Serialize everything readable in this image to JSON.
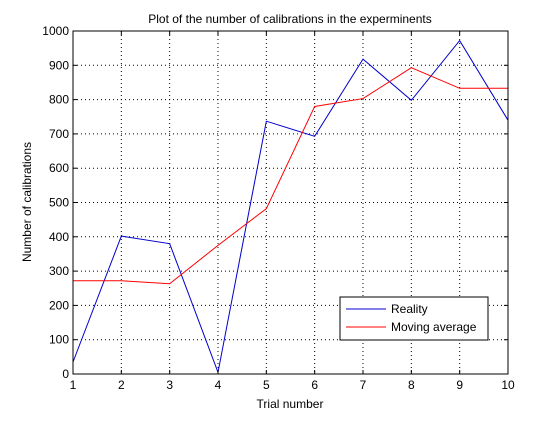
{
  "chart_data": {
    "type": "line",
    "title": "Plot of the number of calibrations in the experminents",
    "xlabel": "Trial number",
    "ylabel": "Number of calibrations",
    "xlim": [
      1,
      10
    ],
    "ylim": [
      0,
      1000
    ],
    "x_ticks": [
      1,
      2,
      3,
      4,
      5,
      6,
      7,
      8,
      9,
      10
    ],
    "y_ticks": [
      0,
      100,
      200,
      300,
      400,
      500,
      600,
      700,
      800,
      900,
      1000
    ],
    "grid": true,
    "legend_position": "bottom-right",
    "x": [
      1,
      2,
      3,
      4,
      5,
      6,
      7,
      8,
      9,
      10
    ],
    "series": [
      {
        "name": "Reality",
        "color": "#0000cc",
        "values": [
          35,
          402,
          380,
          5,
          737,
          693,
          918,
          798,
          972,
          740
        ]
      },
      {
        "name": "Moving average",
        "color": "#ff0000",
        "values": [
          272,
          272,
          263,
          375,
          482,
          780,
          803,
          893,
          833,
          833
        ]
      }
    ]
  }
}
